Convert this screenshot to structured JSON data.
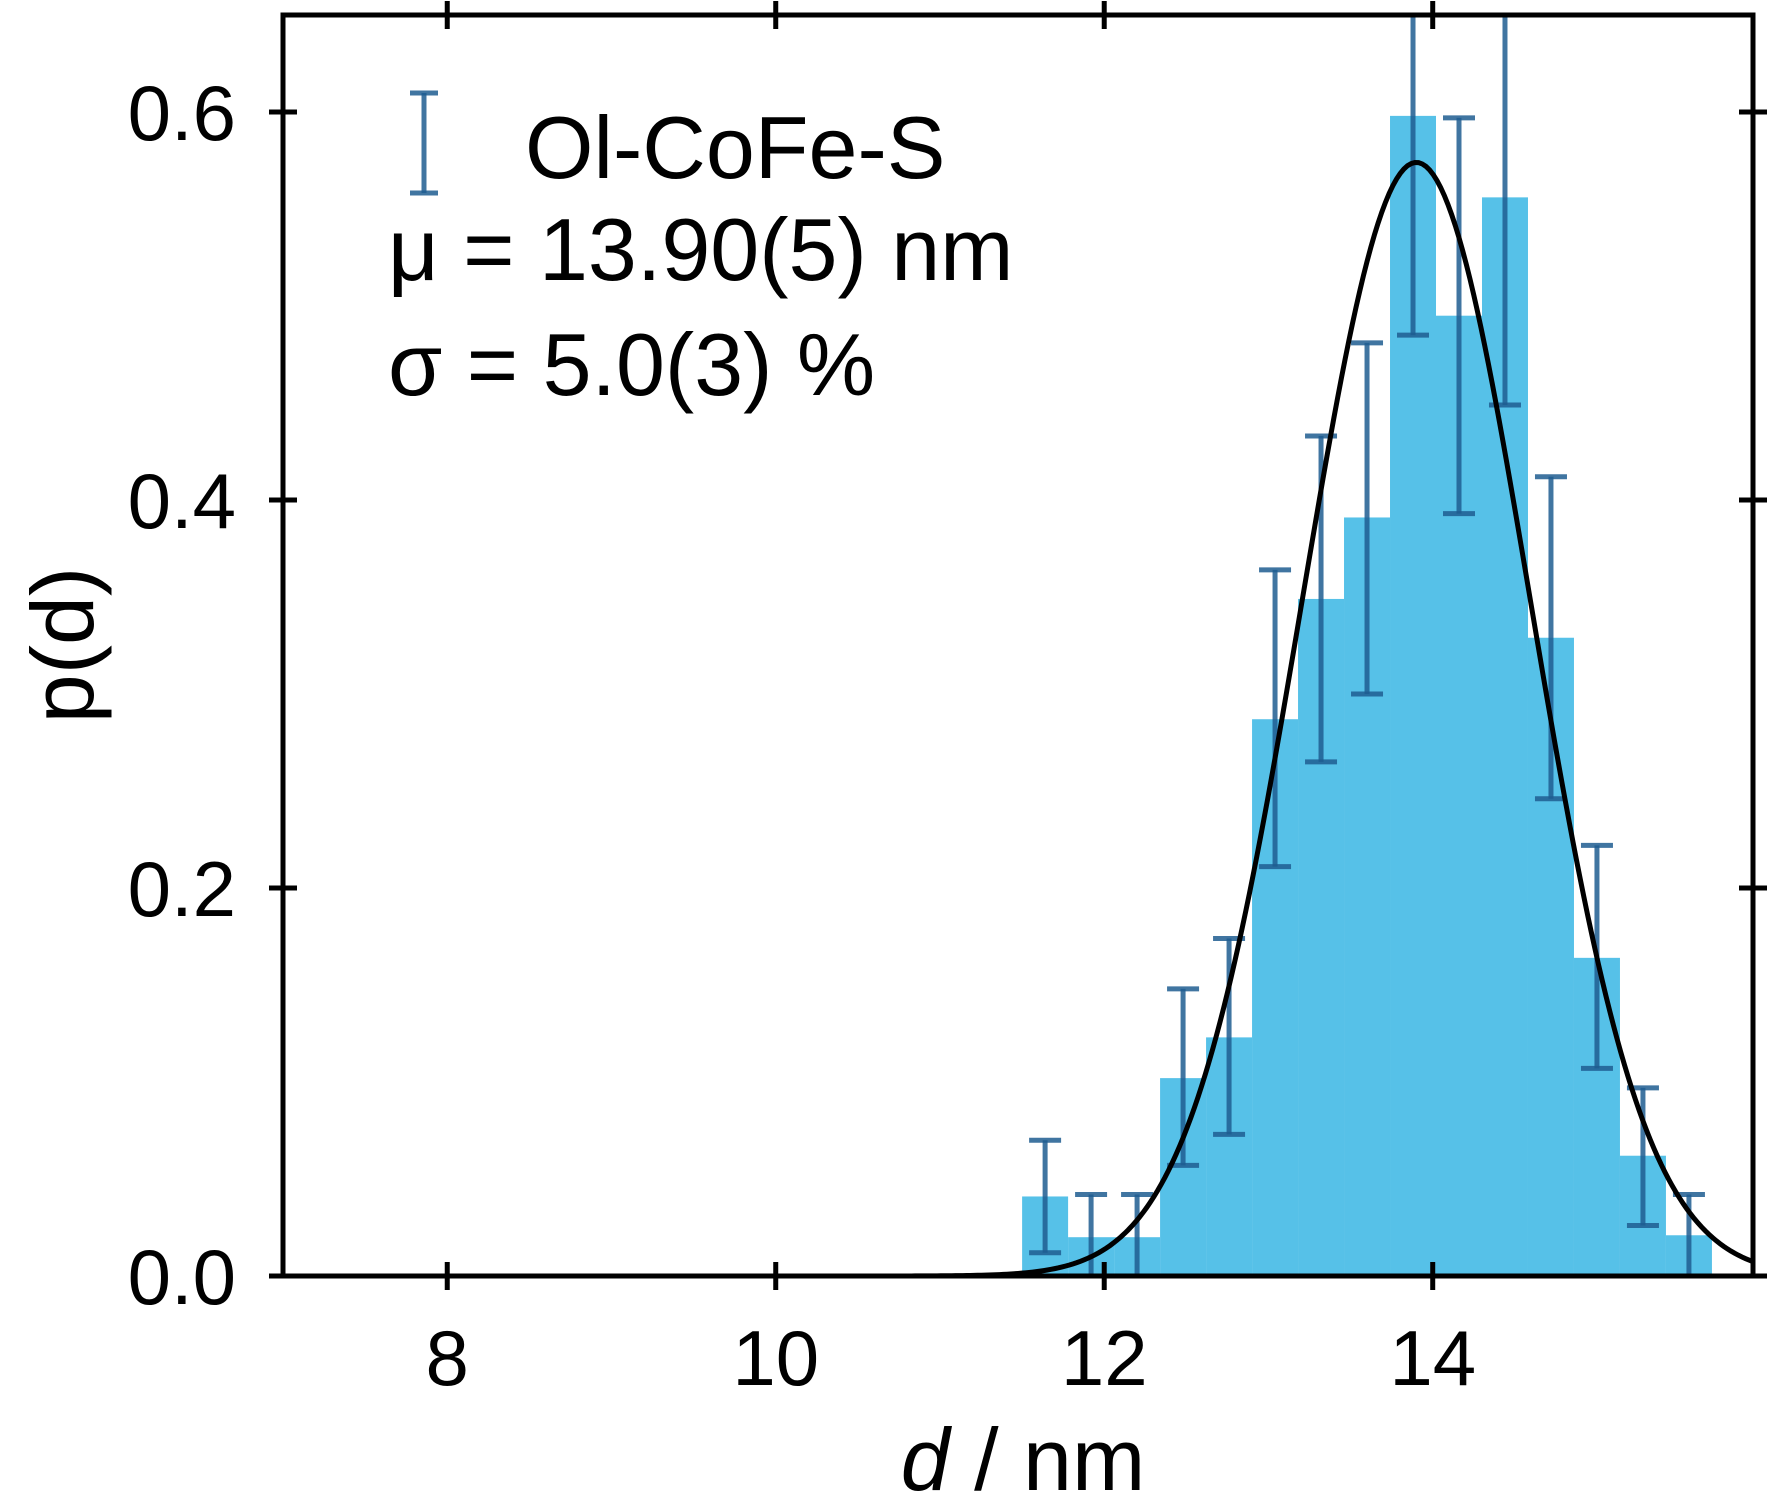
{
  "chart_data": {
    "type": "bar",
    "xlabel": {
      "symbol": "d",
      "sep": " / ",
      "unit": "nm"
    },
    "ylabel": "p(d)",
    "xlim": [
      7,
      15.95
    ],
    "ylim": [
      0,
      0.65
    ],
    "xticks": [
      8,
      10,
      12,
      14
    ],
    "xtick_labels": [
      "8",
      "10",
      "12",
      "14"
    ],
    "yticks": [
      0,
      0.2,
      0.4,
      0.6
    ],
    "ytick_labels": [
      "0.0",
      "0.2",
      "0.4",
      "0.6"
    ],
    "grid": false,
    "legend_placement": "top-left",
    "series": [
      {
        "kind": "histogram",
        "name": "Ol-CoFe-S",
        "bin_width": 0.28,
        "bin_left_edges": [
          11.5,
          11.78,
          12.06,
          12.34,
          12.62,
          12.9,
          13.18,
          13.46,
          13.74,
          14.02,
          14.3,
          14.58,
          14.86,
          15.14,
          15.42
        ],
        "values": [
          0.041,
          0.02,
          0.02,
          0.102,
          0.123,
          0.287,
          0.349,
          0.391,
          0.598,
          0.495,
          0.556,
          0.329,
          0.164,
          0.062,
          0.021
        ],
        "error_low": [
          0.012,
          0.0,
          0.0,
          0.057,
          0.073,
          0.211,
          0.265,
          0.3,
          0.485,
          0.393,
          0.449,
          0.246,
          0.107,
          0.026,
          0.0
        ],
        "error_high": [
          0.07,
          0.042,
          0.042,
          0.148,
          0.174,
          0.364,
          0.433,
          0.481,
          0.65,
          0.597,
          0.65,
          0.412,
          0.222,
          0.097,
          0.042
        ]
      },
      {
        "kind": "fit_curve",
        "mu": 13.9,
        "sigma_fraction": 0.05,
        "peak": 0.574
      }
    ],
    "annotations": [
      "μ = 13.90(5) nm",
      "σ = 5.0(3) %"
    ],
    "colors": {
      "bars": "#56c1e8",
      "errorbars": "#1f5d91",
      "fit": "#000000",
      "axes": "#000000"
    }
  }
}
